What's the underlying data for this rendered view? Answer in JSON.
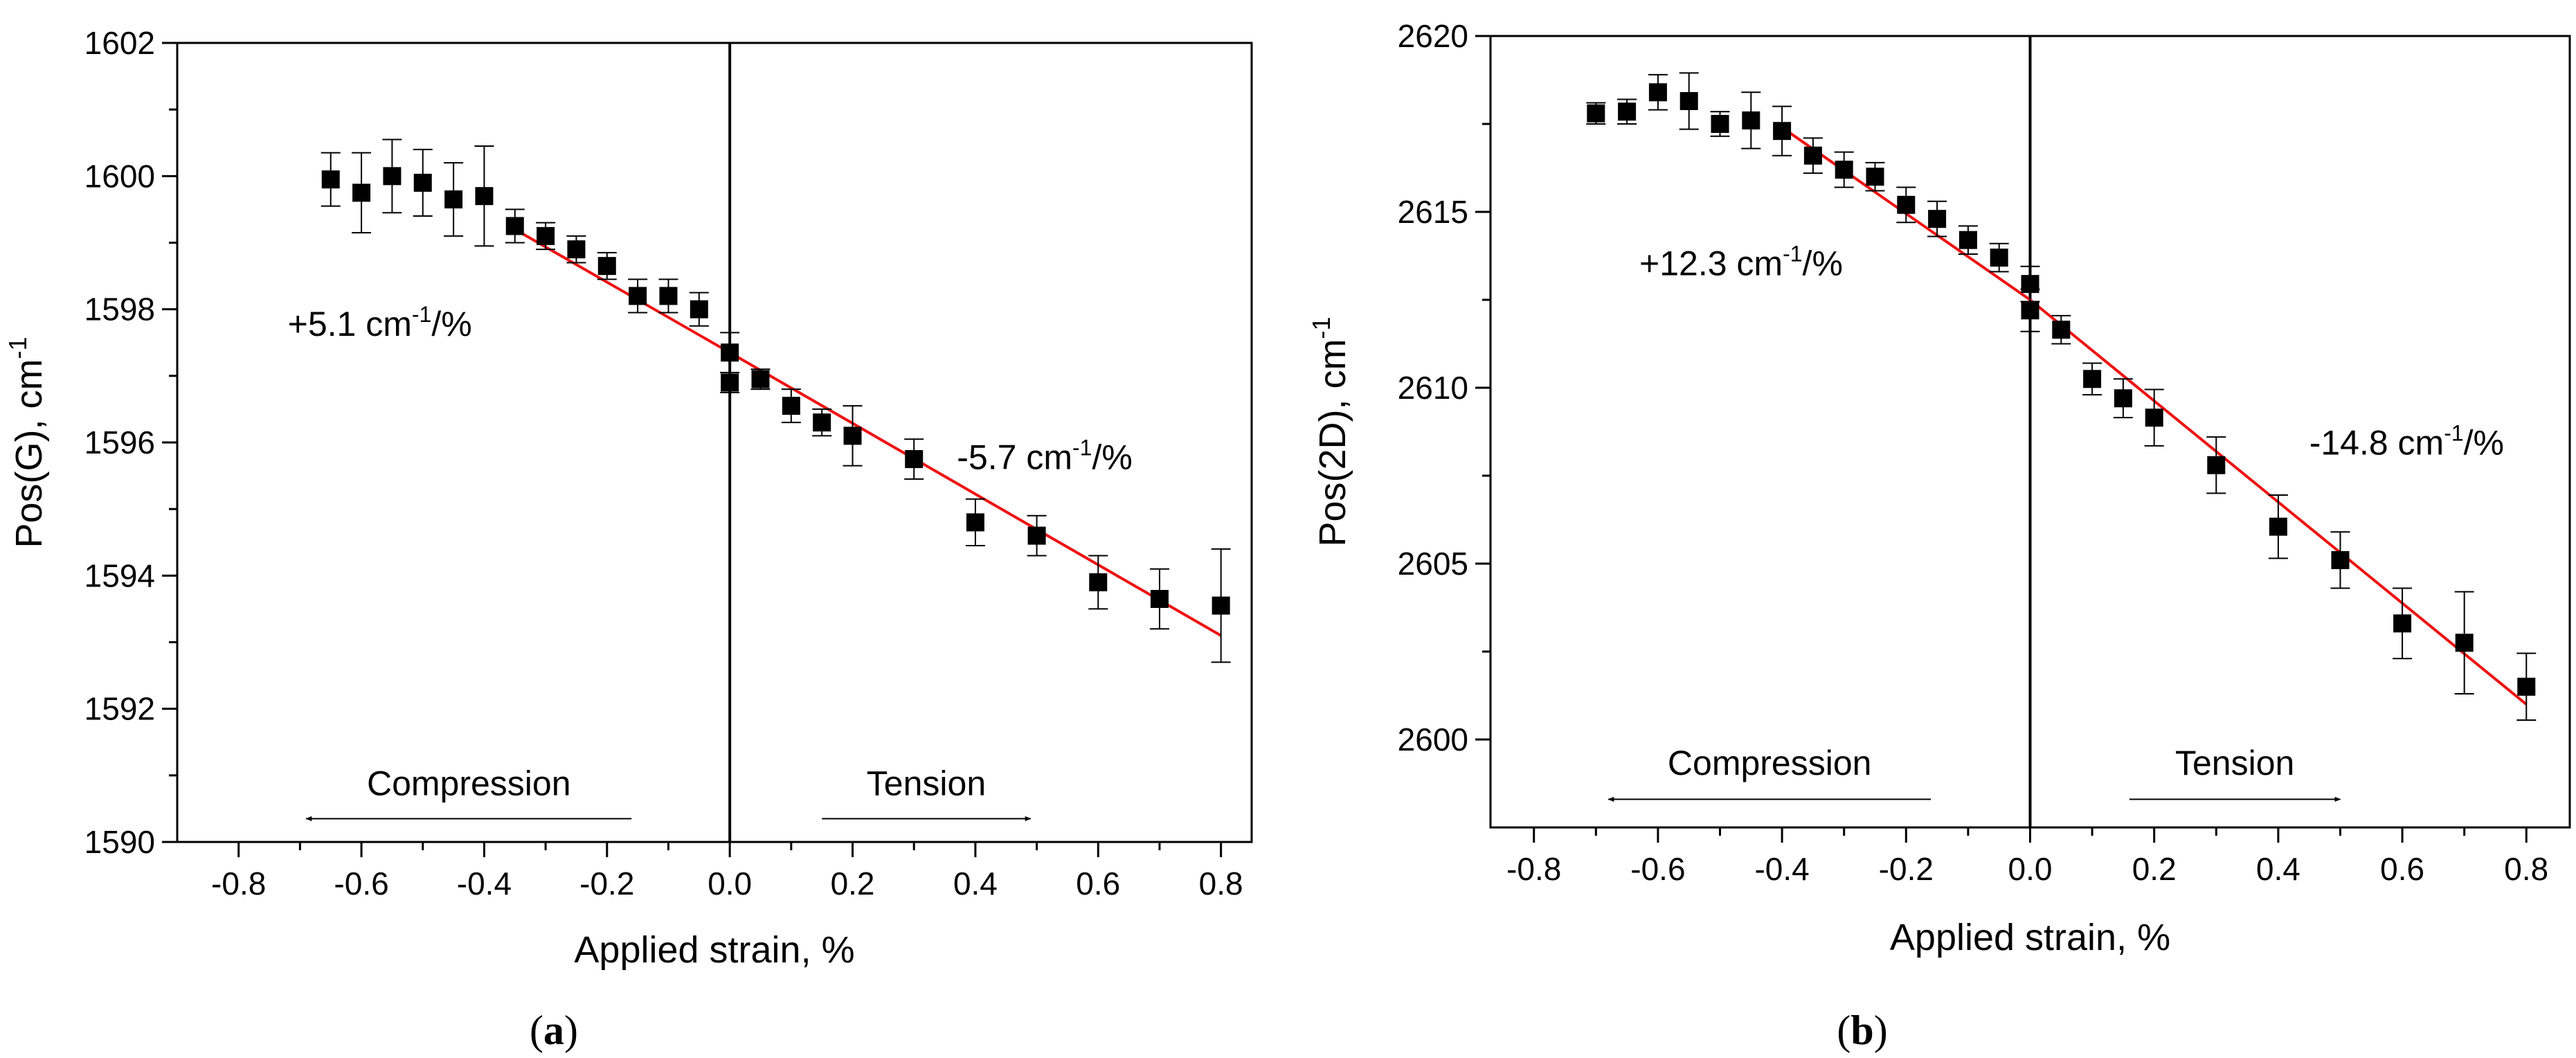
{
  "chart_data": [
    {
      "type": "scatter",
      "panel_label": "a",
      "xlabel": "Applied strain, %",
      "ylabel": "Pos(G), cm",
      "ylabel_sup": "-1",
      "xlim": [
        -0.9,
        0.85
      ],
      "ylim": [
        1590,
        1602
      ],
      "xticks": [
        -0.8,
        -0.6,
        -0.4,
        -0.2,
        0.0,
        0.2,
        0.4,
        0.6,
        0.8
      ],
      "xtick_labels": [
        "-0.8",
        "-0.6",
        "-0.4",
        "-0.2",
        "0.0",
        "0.2",
        "0.4",
        "0.6",
        "0.8"
      ],
      "yticks": [
        1590,
        1592,
        1594,
        1596,
        1598,
        1600,
        1602
      ],
      "ytick_labels": [
        "1590",
        "1592",
        "1594",
        "1596",
        "1598",
        "1600",
        "1602"
      ],
      "vline_x": 0.0,
      "points": [
        {
          "x": -0.65,
          "y": 1599.95,
          "err": 0.4
        },
        {
          "x": -0.6,
          "y": 1599.75,
          "err": 0.6
        },
        {
          "x": -0.55,
          "y": 1600.0,
          "err": 0.55
        },
        {
          "x": -0.5,
          "y": 1599.9,
          "err": 0.5
        },
        {
          "x": -0.45,
          "y": 1599.65,
          "err": 0.55
        },
        {
          "x": -0.4,
          "y": 1599.7,
          "err": 0.75
        },
        {
          "x": -0.35,
          "y": 1599.25,
          "err": 0.25
        },
        {
          "x": -0.3,
          "y": 1599.1,
          "err": 0.2
        },
        {
          "x": -0.25,
          "y": 1598.9,
          "err": 0.2
        },
        {
          "x": -0.2,
          "y": 1598.65,
          "err": 0.2
        },
        {
          "x": -0.15,
          "y": 1598.2,
          "err": 0.25
        },
        {
          "x": -0.1,
          "y": 1598.2,
          "err": 0.25
        },
        {
          "x": -0.05,
          "y": 1598.0,
          "err": 0.25
        },
        {
          "x": 0.0,
          "y": 1597.35,
          "err": 0.3
        },
        {
          "x": 0.0,
          "y": 1596.9,
          "err": 0.15
        },
        {
          "x": 0.05,
          "y": 1596.95,
          "err": 0.15
        },
        {
          "x": 0.1,
          "y": 1596.55,
          "err": 0.25
        },
        {
          "x": 0.15,
          "y": 1596.3,
          "err": 0.2
        },
        {
          "x": 0.2,
          "y": 1596.1,
          "err": 0.45
        },
        {
          "x": 0.3,
          "y": 1595.75,
          "err": 0.3
        },
        {
          "x": 0.4,
          "y": 1594.8,
          "err": 0.35
        },
        {
          "x": 0.5,
          "y": 1594.6,
          "err": 0.3
        },
        {
          "x": 0.6,
          "y": 1593.9,
          "err": 0.4
        },
        {
          "x": 0.7,
          "y": 1593.65,
          "err": 0.45
        },
        {
          "x": 0.8,
          "y": 1593.55,
          "err": 0.85
        }
      ],
      "fit_lines": [
        {
          "x": [
            -0.35,
            0.0
          ],
          "y": [
            1599.2,
            1597.35
          ]
        },
        {
          "x": [
            0.0,
            0.8
          ],
          "y": [
            1597.35,
            1593.1
          ]
        }
      ],
      "annotations": [
        {
          "text": "+5.1 cm",
          "sup": "-1",
          "suffix": "/%",
          "x": -0.72,
          "y": 1597.6
        },
        {
          "text": "-5.7 cm",
          "sup": "-1",
          "suffix": "/%",
          "x": 0.37,
          "y": 1595.6
        }
      ],
      "arrows": [
        {
          "label": "Compression",
          "x_from": -0.16,
          "x_to": -0.69,
          "y": 1590.35,
          "label_y": 1590.7
        },
        {
          "label": "Tension",
          "x_from": 0.15,
          "x_to": 0.49,
          "y": 1590.35,
          "label_y": 1590.7
        }
      ]
    },
    {
      "type": "scatter",
      "panel_label": "b",
      "xlabel": "Applied strain, %",
      "ylabel": "Pos(2D), cm",
      "ylabel_sup": "-1",
      "xlim": [
        -0.87,
        0.87
      ],
      "ylim": [
        2597.5,
        2620
      ],
      "xticks": [
        -0.8,
        -0.6,
        -0.4,
        -0.2,
        0.0,
        0.2,
        0.4,
        0.6,
        0.8
      ],
      "xtick_labels": [
        "-0.8",
        "-0.6",
        "-0.4",
        "-0.2",
        "0.0",
        "0.2",
        "0.4",
        "0.6",
        "0.8"
      ],
      "yticks": [
        2600,
        2605,
        2610,
        2615,
        2620
      ],
      "ytick_labels": [
        "2600",
        "2605",
        "2610",
        "2615",
        "2620"
      ],
      "vline_x": 0.0,
      "points": [
        {
          "x": -0.7,
          "y": 2617.8,
          "err": 0.3
        },
        {
          "x": -0.65,
          "y": 2617.85,
          "err": 0.35
        },
        {
          "x": -0.6,
          "y": 2618.4,
          "err": 0.5
        },
        {
          "x": -0.55,
          "y": 2618.15,
          "err": 0.8
        },
        {
          "x": -0.5,
          "y": 2617.5,
          "err": 0.35
        },
        {
          "x": -0.45,
          "y": 2617.6,
          "err": 0.8
        },
        {
          "x": -0.4,
          "y": 2617.3,
          "err": 0.7
        },
        {
          "x": -0.35,
          "y": 2616.6,
          "err": 0.5
        },
        {
          "x": -0.3,
          "y": 2616.2,
          "err": 0.5
        },
        {
          "x": -0.25,
          "y": 2616.0,
          "err": 0.4
        },
        {
          "x": -0.2,
          "y": 2615.2,
          "err": 0.5
        },
        {
          "x": -0.15,
          "y": 2614.8,
          "err": 0.5
        },
        {
          "x": -0.1,
          "y": 2614.2,
          "err": 0.4
        },
        {
          "x": -0.05,
          "y": 2613.7,
          "err": 0.4
        },
        {
          "x": 0.0,
          "y": 2612.95,
          "err": 0.5
        },
        {
          "x": 0.0,
          "y": 2612.2,
          "err": 0.6
        },
        {
          "x": 0.05,
          "y": 2611.65,
          "err": 0.4
        },
        {
          "x": 0.1,
          "y": 2610.25,
          "err": 0.45
        },
        {
          "x": 0.15,
          "y": 2609.7,
          "err": 0.55
        },
        {
          "x": 0.2,
          "y": 2609.15,
          "err": 0.8
        },
        {
          "x": 0.3,
          "y": 2607.8,
          "err": 0.8
        },
        {
          "x": 0.4,
          "y": 2606.05,
          "err": 0.9
        },
        {
          "x": 0.5,
          "y": 2605.1,
          "err": 0.8
        },
        {
          "x": 0.6,
          "y": 2603.3,
          "err": 1.0
        },
        {
          "x": 0.7,
          "y": 2602.75,
          "err": 1.45
        },
        {
          "x": 0.8,
          "y": 2601.5,
          "err": 0.95
        }
      ],
      "fit_lines": [
        {
          "x": [
            -0.4,
            0.0
          ],
          "y": [
            2617.4,
            2612.5
          ]
        },
        {
          "x": [
            0.0,
            0.8
          ],
          "y": [
            2612.5,
            2601.0
          ]
        }
      ],
      "annotations": [
        {
          "text": "+12.3 cm",
          "sup": "-1",
          "suffix": "/%",
          "x": -0.63,
          "y": 2613.2
        },
        {
          "text": "-14.8 cm",
          "sup": "-1",
          "suffix": "/%",
          "x": 0.45,
          "y": 2608.1
        }
      ],
      "arrows": [
        {
          "label": "Compression",
          "x_from": -0.16,
          "x_to": -0.68,
          "y": 2598.3,
          "label_y": 2599.0
        },
        {
          "label": "Tension",
          "x_from": 0.16,
          "x_to": 0.5,
          "y": 2598.3,
          "label_y": 2599.0
        }
      ]
    }
  ]
}
